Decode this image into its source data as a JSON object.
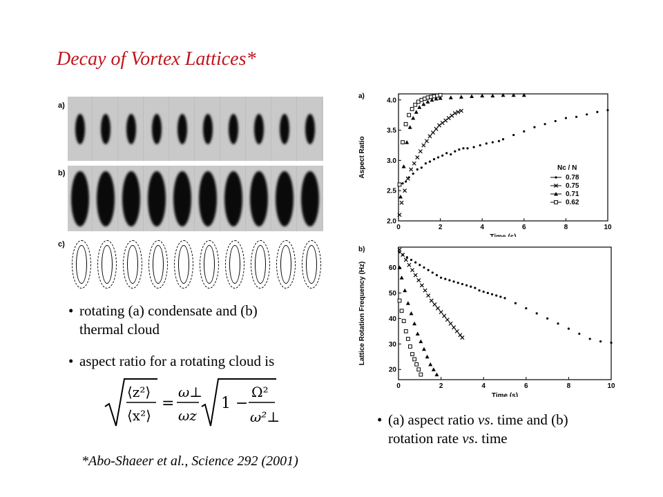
{
  "slide": {
    "title": "Decay of Vortex Lattices*",
    "panel_labels": {
      "a": "a)",
      "b": "b)",
      "c": "c)"
    },
    "bullets": {
      "b1_line1": "rotating (a) condensate and (b)",
      "b1_line2": "thermal cloud",
      "b2": "aspect ratio for a rotating cloud is",
      "b3_line1_pre": "(a) aspect ratio ",
      "b3_line1_vs": "vs",
      "b3_line1_post": ". time and (b)",
      "b3_line2_pre": "rotation rate ",
      "b3_line2_vs": "vs",
      "b3_line2_post": ". time"
    },
    "formula": {
      "z2": "⟨z²⟩",
      "x2": "⟨x²⟩",
      "eq": "=",
      "w_perp": "ω⊥",
      "w_z": "ωz",
      "one_minus": "1 −",
      "Omega2": "Ω²",
      "w_perp2": "ω²⊥"
    },
    "citation": "*Abo-Shaeer et al., Science 292 (2001)",
    "condensate_frames": 10,
    "thermal_frames": 10,
    "ring_frames": 10
  },
  "chart_data": [
    {
      "type": "scatter",
      "panel_label": "a)",
      "xlabel": "Time (s)",
      "ylabel": "Aspect Ratio",
      "xlim": [
        0,
        10
      ],
      "ylim": [
        2.0,
        4.1
      ],
      "xticks": [
        0,
        2,
        4,
        6,
        8,
        10
      ],
      "yticks": [
        2.0,
        2.5,
        3.0,
        3.5,
        4.0
      ],
      "legend_title": "Nc / N",
      "legend_position": "right",
      "series": [
        {
          "name": "0.78",
          "marker": "dot",
          "x": [
            0.05,
            0.2,
            0.35,
            0.5,
            0.7,
            0.9,
            1.1,
            1.3,
            1.5,
            1.7,
            1.9,
            2.1,
            2.3,
            2.5,
            2.7,
            2.9,
            3.1,
            3.3,
            3.6,
            3.9,
            4.2,
            4.5,
            4.8,
            5.0,
            5.5,
            6.0,
            6.5,
            7.0,
            7.5,
            8.0,
            8.5,
            9.0,
            9.5,
            10.0
          ],
          "y": [
            2.6,
            2.62,
            2.65,
            2.72,
            2.78,
            2.85,
            2.88,
            2.95,
            2.98,
            3.02,
            3.05,
            3.08,
            3.12,
            3.1,
            3.15,
            3.18,
            3.2,
            3.2,
            3.22,
            3.25,
            3.28,
            3.3,
            3.32,
            3.35,
            3.42,
            3.48,
            3.55,
            3.6,
            3.65,
            3.7,
            3.72,
            3.76,
            3.8,
            3.83
          ]
        },
        {
          "name": "0.75",
          "marker": "cross",
          "x": [
            0.05,
            0.15,
            0.3,
            0.45,
            0.6,
            0.75,
            0.9,
            1.05,
            1.2,
            1.35,
            1.5,
            1.65,
            1.8,
            1.95,
            2.1,
            2.25,
            2.4,
            2.55,
            2.7,
            2.85,
            3.0
          ],
          "y": [
            2.1,
            2.3,
            2.5,
            2.7,
            2.85,
            2.95,
            3.05,
            3.15,
            3.25,
            3.32,
            3.4,
            3.46,
            3.52,
            3.58,
            3.62,
            3.66,
            3.7,
            3.74,
            3.78,
            3.8,
            3.82
          ]
        },
        {
          "name": "0.71",
          "marker": "triangle",
          "x": [
            0.1,
            0.25,
            0.4,
            0.55,
            0.7,
            0.85,
            1.0,
            1.2,
            1.4,
            1.6,
            1.8,
            2.0,
            2.5,
            3.0,
            3.5,
            4.0,
            4.5,
            5.0,
            5.5,
            6.0
          ],
          "y": [
            2.4,
            2.9,
            3.3,
            3.55,
            3.7,
            3.8,
            3.88,
            3.93,
            3.97,
            4.0,
            4.02,
            4.03,
            4.04,
            4.05,
            4.06,
            4.07,
            4.07,
            4.08,
            4.08,
            4.08
          ]
        },
        {
          "name": "0.62",
          "marker": "square",
          "x": [
            0.05,
            0.2,
            0.35,
            0.5,
            0.65,
            0.8,
            0.95,
            1.1,
            1.25,
            1.4,
            1.55,
            1.7,
            1.85,
            2.0
          ],
          "y": [
            2.6,
            3.3,
            3.6,
            3.75,
            3.85,
            3.92,
            3.97,
            4.0,
            4.02,
            4.04,
            4.05,
            4.06,
            4.07,
            4.08
          ]
        }
      ]
    },
    {
      "type": "scatter",
      "panel_label": "b)",
      "xlabel": "Time (s)",
      "ylabel": "Lattice Rotation Frequency (Hz)",
      "xlim": [
        0,
        10
      ],
      "ylim": [
        16,
        68
      ],
      "xticks": [
        0,
        2,
        4,
        6,
        8,
        10
      ],
      "yticks": [
        20,
        30,
        40,
        50,
        60
      ],
      "series": [
        {
          "name": "0.78",
          "marker": "dot",
          "x": [
            0.05,
            0.2,
            0.4,
            0.6,
            0.8,
            1.0,
            1.2,
            1.4,
            1.6,
            1.8,
            2.0,
            2.2,
            2.4,
            2.6,
            2.8,
            3.0,
            3.2,
            3.4,
            3.6,
            3.8,
            4.0,
            4.2,
            4.4,
            4.6,
            4.8,
            5.0,
            5.5,
            6.0,
            6.5,
            7.0,
            7.5,
            8.0,
            8.5,
            9.0,
            9.5,
            10.0
          ],
          "y": [
            66,
            65,
            64,
            63,
            62,
            61,
            60,
            59,
            58,
            57,
            56,
            55.5,
            55,
            54.5,
            54,
            53.5,
            53,
            52.5,
            52,
            51,
            50.5,
            50,
            49.5,
            49,
            48.5,
            48,
            46,
            44,
            42,
            40,
            38,
            36,
            34,
            32,
            31,
            30.5
          ]
        },
        {
          "name": "0.75",
          "marker": "cross",
          "x": [
            0.05,
            0.2,
            0.35,
            0.5,
            0.65,
            0.8,
            0.95,
            1.1,
            1.25,
            1.4,
            1.55,
            1.7,
            1.85,
            2.0,
            2.15,
            2.3,
            2.45,
            2.6,
            2.75,
            2.9,
            3.0
          ],
          "y": [
            67,
            65,
            63,
            61,
            59,
            57,
            55,
            53,
            51,
            49,
            47,
            45.5,
            44,
            42.5,
            41,
            39.5,
            38,
            36.5,
            35,
            33.5,
            32.5
          ]
        },
        {
          "name": "0.71",
          "marker": "triangle",
          "x": [
            0.05,
            0.15,
            0.3,
            0.45,
            0.6,
            0.75,
            0.9,
            1.05,
            1.2,
            1.35,
            1.5,
            1.65,
            1.8
          ],
          "y": [
            60,
            56,
            51,
            46,
            42,
            38,
            34,
            31,
            28,
            25,
            22,
            20,
            18
          ]
        },
        {
          "name": "0.62",
          "marker": "square",
          "x": [
            0.05,
            0.15,
            0.25,
            0.35,
            0.45,
            0.55,
            0.65,
            0.75,
            0.85,
            0.95,
            1.05
          ],
          "y": [
            47,
            43,
            39,
            35,
            32,
            29,
            26,
            24,
            22,
            20,
            18
          ]
        }
      ]
    }
  ]
}
